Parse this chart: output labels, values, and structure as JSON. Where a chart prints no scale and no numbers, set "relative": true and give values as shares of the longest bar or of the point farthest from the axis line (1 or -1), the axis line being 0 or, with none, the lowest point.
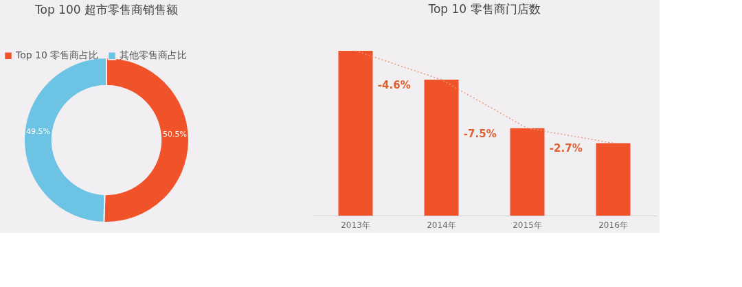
{
  "chart_data": [
    {
      "type": "donut",
      "title": "Top 100 超市零售商销售额",
      "categories": [
        "Top 10 零售商占比",
        "其他零售商占比"
      ],
      "values": [
        50.5,
        49.5
      ],
      "colors": [
        "#f0522a",
        "#6cc3e3"
      ],
      "value_labels": [
        "50.5%",
        "49.5%"
      ],
      "legend": "top left"
    },
    {
      "type": "bar",
      "title": "Top 10 零售商门店数",
      "relative": true,
      "categories": [
        "2013年",
        "2014年",
        "2015年",
        "2016年"
      ],
      "annotations": [
        "-4.6%",
        "-7.5%",
        "-2.7%"
      ],
      "series": [
        {
          "type": "bar",
          "color": "#f0522a",
          "values": [
            1,
            0.825,
            0.53,
            0.44
          ]
        },
        {
          "type": "line",
          "color": "#e9967a",
          "line_style": "dotted",
          "values": [
            1,
            0.825,
            0.53,
            0.44
          ]
        }
      ]
    }
  ]
}
